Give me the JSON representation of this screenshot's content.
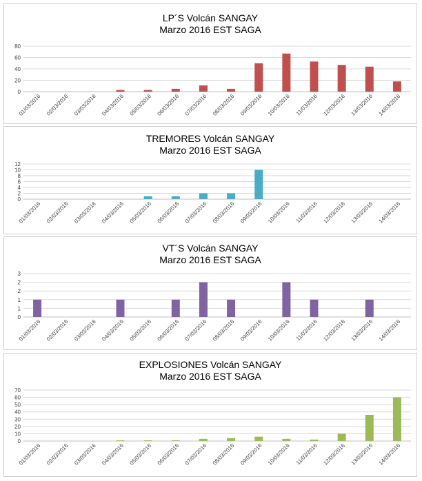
{
  "chart_data": [
    {
      "type": "bar",
      "title": "LP´S Volcán SANGAY",
      "subtitle": "Marzo 2016 EST SAGA",
      "categories": [
        "01/03/2016",
        "02/03/2016",
        "03/03/2016",
        "04/03/2016",
        "05/03/2016",
        "06/03/2016",
        "07/03/2016",
        "08/03/2016",
        "09/03/2016",
        "10/03/2016",
        "11/03/2016",
        "12/03/2016",
        "13/03/2016",
        "14/03/2016"
      ],
      "values": [
        0,
        0,
        0,
        3,
        3,
        5,
        11,
        5,
        50,
        67,
        53,
        47,
        44,
        18
      ],
      "ylim": [
        0,
        80
      ],
      "yticks": [
        "0",
        "20",
        "40",
        "60",
        "80"
      ],
      "color": "#c0504d",
      "grid": true,
      "legend": "none"
    },
    {
      "type": "bar",
      "title": "TREMORES Volcán SANGAY",
      "subtitle": "Marzo 2016 EST SAGA",
      "categories": [
        "01/03/2016",
        "02/03/2016",
        "03/03/2016",
        "04/03/2016",
        "05/03/2016",
        "06/03/2016",
        "07/03/2016",
        "08/03/2016",
        "09/03/2016",
        "10/03/2016",
        "11/03/2016",
        "12/03/2016",
        "13/03/2016",
        "14/03/2016"
      ],
      "values": [
        0,
        0,
        0,
        0,
        1,
        1,
        2,
        2,
        10,
        0,
        0,
        0,
        0,
        0
      ],
      "ylim": [
        0,
        12
      ],
      "yticks": [
        "0",
        "2",
        "4",
        "6",
        "8",
        "10",
        "12"
      ],
      "color": "#4bacc6",
      "grid": true,
      "legend": "none"
    },
    {
      "type": "bar",
      "title": "VT´S Volcán SANGAY",
      "subtitle": "Marzo 2016 EST SAGA",
      "categories": [
        "01/03/2016",
        "02/03/2016",
        "03/03/2016",
        "04/03/2016",
        "05/03/2016",
        "06/03/2016",
        "07/03/2016",
        "08/03/2016",
        "09/03/2016",
        "10/03/2016",
        "11/03/2016",
        "12/03/2016",
        "13/03/2016",
        "14/03/2016"
      ],
      "values": [
        1,
        0,
        0,
        1,
        0,
        1,
        2,
        1,
        0,
        2,
        1,
        0,
        1,
        0
      ],
      "ylim": [
        0,
        2.5
      ],
      "yticks": [
        "0",
        "1",
        "1",
        "2",
        "2",
        "3"
      ],
      "color": "#8064a2",
      "grid": true,
      "legend": "none"
    },
    {
      "type": "bar",
      "title": "EXPLOSIONES Volcán SANGAY",
      "subtitle": "Marzo 2016 EST SAGA",
      "categories": [
        "01/03/2016",
        "02/03/2016",
        "03/03/2016",
        "04/03/2016",
        "05/03/2016",
        "06/03/2016",
        "07/03/2016",
        "08/03/2016",
        "09/03/2016",
        "10/03/2016",
        "11/03/2016",
        "12/03/2016",
        "13/03/2016",
        "14/03/2016"
      ],
      "values": [
        0,
        0,
        0,
        1,
        1,
        1,
        3,
        4,
        6,
        3,
        2,
        10,
        36,
        60
      ],
      "ylim": [
        0,
        70
      ],
      "yticks": [
        "0",
        "10",
        "20",
        "30",
        "40",
        "50",
        "60",
        "70"
      ],
      "color": "#9bbb59",
      "grid": true,
      "legend": "none"
    }
  ]
}
